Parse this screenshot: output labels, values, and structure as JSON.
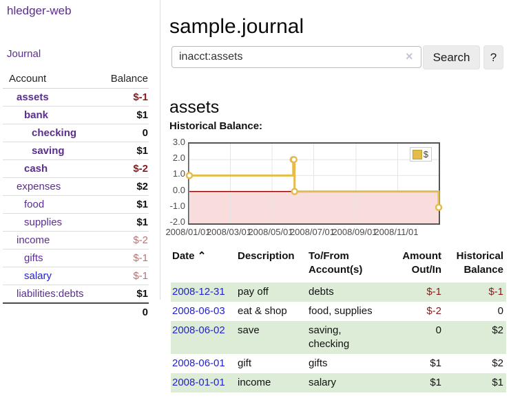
{
  "app": {
    "title": "hledger-web"
  },
  "nav": {
    "journal_label": "Journal"
  },
  "sidebar": {
    "headers": {
      "account": "Account",
      "balance": "Balance"
    },
    "accounts": [
      {
        "label": "assets",
        "depth": 1,
        "bold": true,
        "balance": "$-1",
        "balance_style": "neg"
      },
      {
        "label": "bank",
        "depth": 2,
        "bold": true,
        "balance": "$1",
        "balance_style": "pos"
      },
      {
        "label": "checking",
        "depth": 3,
        "bold": true,
        "balance": "0",
        "balance_style": "pos"
      },
      {
        "label": "saving",
        "depth": 3,
        "bold": true,
        "balance": "$1",
        "balance_style": "pos"
      },
      {
        "label": "cash",
        "depth": 2,
        "bold": true,
        "balance": "$-2",
        "balance_style": "neg"
      },
      {
        "label": "expenses",
        "depth": 1,
        "bold": false,
        "balance": "$2",
        "balance_style": "pos"
      },
      {
        "label": "food",
        "depth": 2,
        "bold": false,
        "balance": "$1",
        "balance_style": "pos"
      },
      {
        "label": "supplies",
        "depth": 2,
        "bold": false,
        "balance": "$1",
        "balance_style": "pos"
      },
      {
        "label": "income",
        "depth": 1,
        "bold": false,
        "balance": "$-2",
        "balance_style": "neg-muted"
      },
      {
        "label": "gifts",
        "depth": 2,
        "bold": false,
        "balance": "$-1",
        "balance_style": "neg-muted"
      },
      {
        "label": "salary",
        "depth": 2,
        "bold": false,
        "balance": "$-1",
        "balance_style": "neg-muted",
        "link": "blue"
      },
      {
        "label": "liabilities:debts",
        "depth": 1,
        "bold": false,
        "balance": "$1",
        "balance_style": "pos"
      }
    ],
    "total": "0"
  },
  "main": {
    "title": "sample.journal",
    "search": {
      "value": "inacct:assets",
      "clear_icon": "×",
      "button_label": "Search",
      "help_label": "?"
    },
    "account_heading": "assets",
    "chart_label": "Historical Balance:"
  },
  "chart_data": {
    "type": "line",
    "title": "Historical Balance:",
    "x_range": [
      "2008-01-01",
      "2008-12-31"
    ],
    "ylim": [
      -2,
      3
    ],
    "y_ticks": [
      3,
      2,
      1,
      0,
      -1,
      -2
    ],
    "x_ticks": [
      "2008/01/01",
      "2008/03/01",
      "2008/05/01",
      "2008/07/01",
      "2008/09/01",
      "2008/11/01"
    ],
    "series": [
      {
        "name": "$",
        "step": true,
        "points": [
          [
            "2008-01-01",
            1
          ],
          [
            "2008-06-01",
            2
          ],
          [
            "2008-06-02",
            2
          ],
          [
            "2008-06-03",
            0
          ],
          [
            "2008-12-31",
            -1
          ]
        ]
      }
    ],
    "legend_position": "top-right",
    "series_color": "#e3bc4b",
    "negative_region_color": "#f9dcdc",
    "zero_line_color": "#8b0000",
    "grid_color": "#e4e4e4"
  },
  "transactions": {
    "headers": [
      "Date",
      "Description",
      "To/From Account(s)",
      "Amount Out/In",
      "Historical Balance"
    ],
    "sort_icon": "⌃",
    "rows": [
      {
        "date": "2008-12-31",
        "description": "pay off",
        "accounts": "debts",
        "amount": "$-1",
        "amount_neg": true,
        "historical": "$-1",
        "historical_neg": true,
        "green": true
      },
      {
        "date": "2008-06-03",
        "description": "eat & shop",
        "accounts": "food, supplies",
        "amount": "$-2",
        "amount_neg": true,
        "historical": "0",
        "historical_neg": false,
        "green": false
      },
      {
        "date": "2008-06-02",
        "description": "save",
        "accounts": "saving,\nchecking",
        "amount": "0",
        "amount_neg": false,
        "historical": "$2",
        "historical_neg": false,
        "green": true
      },
      {
        "date": "2008-06-01",
        "description": "gift",
        "accounts": "gifts",
        "amount": "$1",
        "amount_neg": false,
        "historical": "$2",
        "historical_neg": false,
        "green": false
      },
      {
        "date": "2008-01-01",
        "description": "income",
        "accounts": "salary",
        "amount": "$1",
        "amount_neg": false,
        "historical": "$1",
        "historical_neg": false,
        "green": true
      }
    ]
  },
  "colors": {
    "link_purple": "#5b2d90",
    "link_blue": "#2222cc",
    "negative": "#8a1a1a",
    "negative_muted": "#bf6f6f",
    "row_green": "#dcecd6",
    "series_gold": "#e3bc4b"
  }
}
